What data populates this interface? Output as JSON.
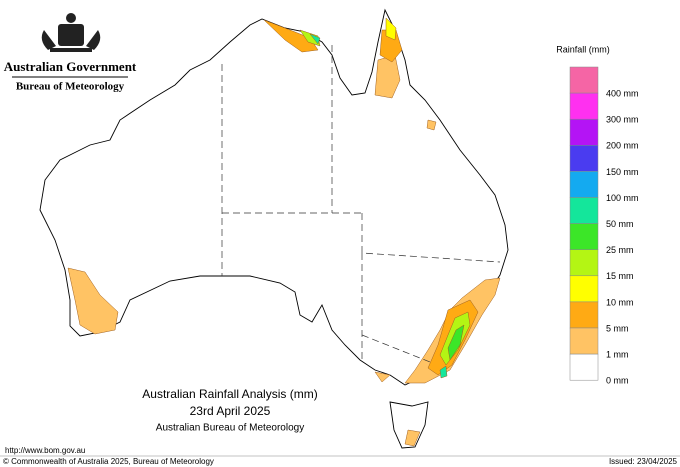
{
  "header": {
    "government": "Australian Government",
    "agency": "Bureau of Meteorology"
  },
  "legend": {
    "title": "Rainfall (mm)",
    "items": [
      {
        "label": "400 mm",
        "color": "#f565a5"
      },
      {
        "label": "300 mm",
        "color": "#ff30f0"
      },
      {
        "label": "200 mm",
        "color": "#b414f5"
      },
      {
        "label": "150 mm",
        "color": "#4a3cf0"
      },
      {
        "label": "100 mm",
        "color": "#14aaf0"
      },
      {
        "label": "50 mm",
        "color": "#14e69b"
      },
      {
        "label": "25 mm",
        "color": "#3ce628"
      },
      {
        "label": "15 mm",
        "color": "#b4f514"
      },
      {
        "label": "10 mm",
        "color": "#ffff00"
      },
      {
        "label": "5 mm",
        "color": "#ffaa14"
      },
      {
        "label": "1 mm",
        "color": "#ffc364"
      },
      {
        "label": "0 mm",
        "color": "#ffffff"
      }
    ]
  },
  "title": {
    "heading": "Australian Rainfall Analysis (mm)",
    "date": "23rd April 2025",
    "source": "Australian Bureau of Meteorology"
  },
  "footer": {
    "url": "http://www.bom.gov.au",
    "copyright": "© Commonwealth of Australia 2025, Bureau of Meteorology",
    "issued": "Issued: 23/04/2025"
  }
}
